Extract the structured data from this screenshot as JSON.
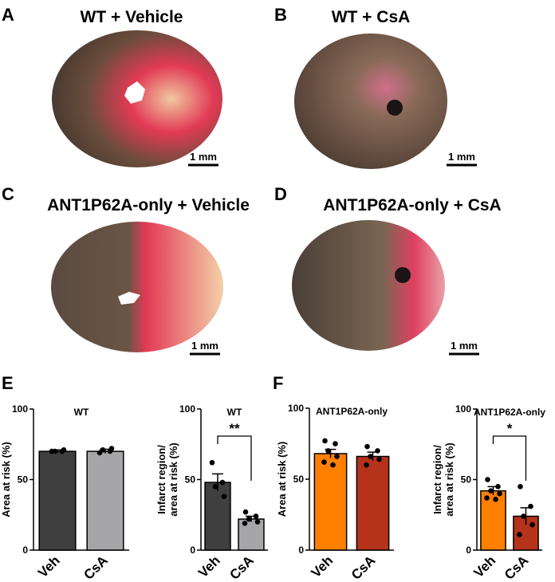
{
  "panels": [
    {
      "letter": "A",
      "title": "WT + Vehicle",
      "scale": "1 mm"
    },
    {
      "letter": "B",
      "title": "WT + CsA",
      "scale": "1 mm"
    },
    {
      "letter": "C",
      "title": "ANT1P62A-only + Vehicle",
      "scale": "1 mm"
    },
    {
      "letter": "D",
      "title": "ANT1P62A-only + CsA",
      "scale": "1 mm"
    },
    {
      "letter": "E"
    },
    {
      "letter": "F"
    }
  ],
  "chart_data": [
    {
      "type": "bar",
      "title": "WT",
      "ylabel": [
        "Area at risk (%)"
      ],
      "categories": [
        "Veh",
        "CsA"
      ],
      "values": [
        70,
        70
      ],
      "errors": [
        1,
        1.5
      ],
      "colors": [
        "#3f3f3f",
        "#a6a6a8"
      ],
      "points": [
        [
          70,
          70,
          70,
          71
        ],
        [
          69,
          70,
          71,
          72
        ]
      ],
      "ylim": [
        0,
        100
      ],
      "yticks": [
        0,
        50,
        100
      ]
    },
    {
      "type": "bar",
      "title": "WT",
      "ylabel": [
        "Infarct region/",
        "area at risk (%)"
      ],
      "categories": [
        "Veh",
        "CsA"
      ],
      "values": [
        48,
        22
      ],
      "errors": [
        6,
        2
      ],
      "colors": [
        "#3f3f3f",
        "#a6a6a8"
      ],
      "points": [
        [
          62,
          48,
          45,
          38
        ],
        [
          27,
          24,
          22,
          20,
          19
        ]
      ],
      "ylim": [
        0,
        100
      ],
      "yticks": [
        0,
        50,
        100
      ],
      "annotation": "**"
    },
    {
      "type": "bar",
      "title": "ANT1P62A-only",
      "ylabel": [
        "Area at risk (%)"
      ],
      "categories": [
        "Veh",
        "CsA"
      ],
      "values": [
        68,
        66
      ],
      "errors": [
        3,
        3
      ],
      "colors": [
        "#ff8000",
        "#b5321b"
      ],
      "points": [
        [
          77,
          75,
          70,
          66,
          62,
          60
        ],
        [
          73,
          70,
          66,
          64,
          60
        ]
      ],
      "ylim": [
        0,
        100
      ],
      "yticks": [
        0,
        50,
        100
      ]
    },
    {
      "type": "bar",
      "title": "ANT1P62A-only",
      "ylabel": [
        "Infarct region/",
        "area at risk (%)"
      ],
      "categories": [
        "Veh",
        "CsA"
      ],
      "values": [
        42,
        24
      ],
      "errors": [
        3,
        6
      ],
      "colors": [
        "#ff8000",
        "#b5321b"
      ],
      "points": [
        [
          50,
          45,
          42,
          40,
          37,
          36
        ],
        [
          45,
          31,
          24,
          18,
          11
        ]
      ],
      "ylim": [
        0,
        100
      ],
      "yticks": [
        0,
        50,
        100
      ],
      "annotation": "*"
    }
  ]
}
